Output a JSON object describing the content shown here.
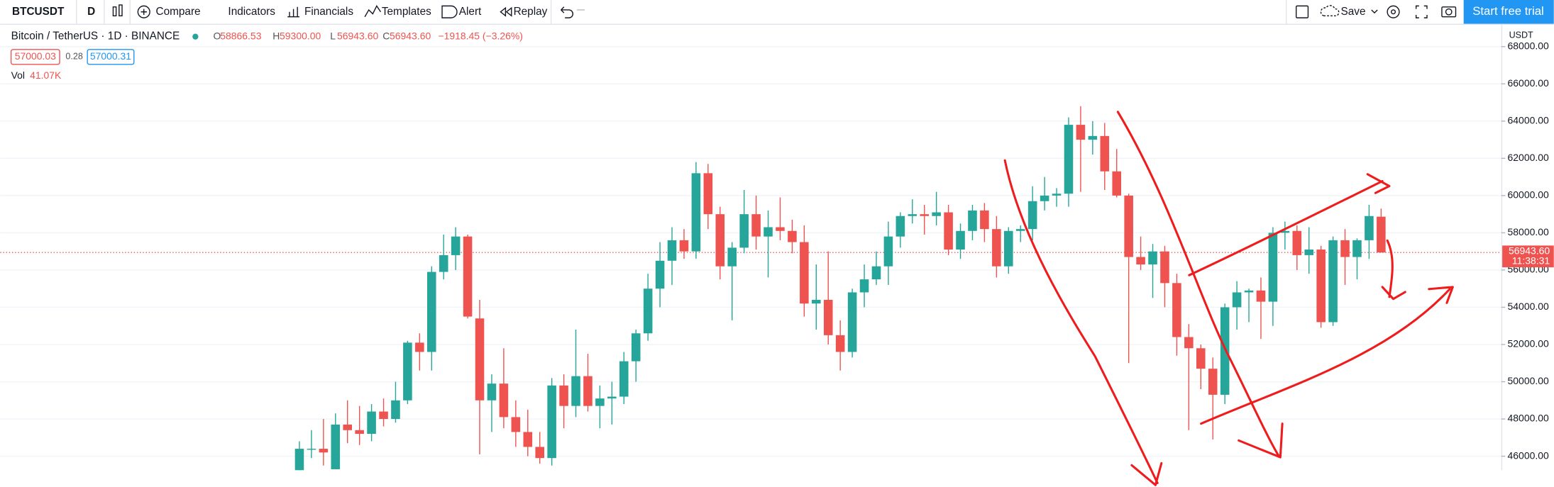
{
  "toolbar": {
    "symbol": "BTCUSDT",
    "interval": "D",
    "items": [
      "Compare",
      "Indicators",
      "Financials",
      "Templates",
      "Alert",
      "Replay"
    ],
    "save": "Save",
    "cta": "Start free trial"
  },
  "legend": {
    "title": "Bitcoin / TetherUS · 1D · BINANCE",
    "ohlc": [
      {
        "key": "O",
        "value": "58866.53"
      },
      {
        "key": "H",
        "value": "59300.00"
      },
      {
        "key": "L",
        "value": "56943.60"
      },
      {
        "key": "C",
        "value": "56943.60"
      }
    ],
    "change": "−1918.45 (−3.26%)",
    "bid": "57000.03",
    "spread": "0.28",
    "ask": "57000.31",
    "volume_label": "Vol",
    "volume": "41.07K"
  },
  "chart_data": {
    "type": "candlestick",
    "currency": "USDT",
    "open": [
      45200,
      46400,
      46400,
      45300,
      47700,
      47400,
      47200,
      48400,
      48000,
      49000,
      52100,
      51600,
      55900,
      56800,
      57800,
      53400,
      49000,
      49900,
      48100,
      47300,
      46500,
      45900,
      49800,
      48700,
      50300,
      48700,
      49100,
      49200,
      51100,
      52600,
      55000,
      56500,
      57600,
      57000,
      61200,
      59000,
      56200,
      57200,
      59000,
      57800,
      58300,
      58100,
      57500,
      54200,
      54400,
      52500,
      51600,
      54800,
      55500,
      56200,
      57800,
      58900,
      59000,
      58900,
      59100,
      57100,
      58100,
      59200,
      58200,
      56200,
      58100,
      58200,
      59700,
      60000,
      60100,
      63800,
      63000,
      63200,
      61300,
      60000,
      56700,
      56300,
      57000,
      55300,
      52400,
      51800,
      50700,
      49300,
      54000,
      54800,
      54900,
      54300,
      58000,
      58100,
      56800,
      57100,
      53200,
      57600,
      56700,
      57600,
      58866.53
    ],
    "high": [
      46800,
      47400,
      48000,
      48300,
      49000,
      48700,
      48800,
      49100,
      50000,
      52200,
      52600,
      56200,
      57900,
      58300,
      57900,
      54400,
      50400,
      51800,
      49000,
      48500,
      47300,
      50200,
      50400,
      52800,
      51500,
      49800,
      50000,
      51600,
      52800,
      55800,
      57500,
      58300,
      58200,
      61800,
      61700,
      59400,
      57500,
      60300,
      60000,
      59200,
      59900,
      58700,
      58400,
      56300,
      57000,
      53300,
      55000,
      56300,
      57000,
      58600,
      59100,
      59800,
      59500,
      60200,
      59500,
      58500,
      59500,
      59600,
      58900,
      58300,
      58400,
      60500,
      61000,
      60400,
      64200,
      64800,
      64000,
      63900,
      62500,
      60100,
      57800,
      57400,
      57300,
      55800,
      53100,
      52000,
      51300,
      54200,
      55400,
      55000,
      55600,
      58300,
      58600,
      58400,
      58300,
      57300,
      57800,
      58200,
      57700,
      59500,
      59300
    ],
    "low": [
      45200,
      45900,
      45500,
      45300,
      46700,
      46600,
      46800,
      47600,
      47800,
      48800,
      50600,
      50600,
      55500,
      56000,
      53400,
      46100,
      47300,
      47500,
      46500,
      46000,
      45600,
      45500,
      47500,
      48100,
      48400,
      47500,
      47700,
      48800,
      50000,
      52200,
      54000,
      55200,
      56600,
      56600,
      58200,
      55500,
      53300,
      56900,
      57100,
      55600,
      57600,
      56900,
      53500,
      52800,
      52000,
      50600,
      51300,
      54000,
      55200,
      55200,
      57200,
      58500,
      57900,
      58400,
      56800,
      56600,
      57600,
      57500,
      55600,
      55800,
      57500,
      57600,
      59200,
      59400,
      59400,
      60200,
      62200,
      60300,
      59900,
      51000,
      56000,
      54500,
      54000,
      51400,
      47400,
      49600,
      46900,
      48800,
      52800,
      53200,
      52300,
      53000,
      57100,
      56000,
      55800,
      52900,
      53000,
      55200,
      55500,
      56600,
      56943.6
    ],
    "close": [
      46400,
      46400,
      46200,
      47700,
      47400,
      47200,
      48400,
      48000,
      49000,
      52100,
      51600,
      55900,
      56800,
      57800,
      53500,
      49000,
      49900,
      48100,
      47300,
      46500,
      45900,
      49800,
      48700,
      50300,
      48700,
      49100,
      49200,
      51100,
      52600,
      55000,
      56500,
      57600,
      57000,
      61200,
      59000,
      56200,
      57200,
      59000,
      57800,
      58300,
      58100,
      57500,
      54200,
      54400,
      52500,
      51600,
      54800,
      55500,
      56200,
      57800,
      58900,
      59000,
      58900,
      59100,
      57100,
      58100,
      59200,
      58200,
      56200,
      58100,
      58200,
      59700,
      60000,
      60100,
      63800,
      63000,
      63200,
      61300,
      60000,
      56700,
      56300,
      57000,
      55300,
      52400,
      51800,
      50700,
      49300,
      54000,
      54800,
      54900,
      54300,
      58000,
      58100,
      56800,
      57100,
      53200,
      57600,
      56700,
      57600,
      58900,
      56943.6
    ],
    "up_color": "#26a69a",
    "down_color": "#ef5350",
    "ylim": [
      45250,
      69175
    ],
    "yticks": [
      {
        "value": 46000,
        "label": "46000.00"
      },
      {
        "value": 48000,
        "label": "48000.00"
      },
      {
        "value": 50000,
        "label": "50000.00"
      },
      {
        "value": 52000,
        "label": "52000.00"
      },
      {
        "value": 54000,
        "label": "54000.00"
      },
      {
        "value": 56000,
        "label": "56000.00"
      },
      {
        "value": 58000,
        "label": "58000.00"
      },
      {
        "value": 60000,
        "label": "60000.00"
      },
      {
        "value": 62000,
        "label": "62000.00"
      },
      {
        "value": 64000,
        "label": "64000.00"
      },
      {
        "value": 66000,
        "label": "66000.00"
      },
      {
        "value": 68000,
        "label": "68000.00"
      }
    ],
    "grid": true,
    "last_price": {
      "value": 56943.6,
      "label": "56943.60"
    },
    "countdown": "11:38:31"
  }
}
